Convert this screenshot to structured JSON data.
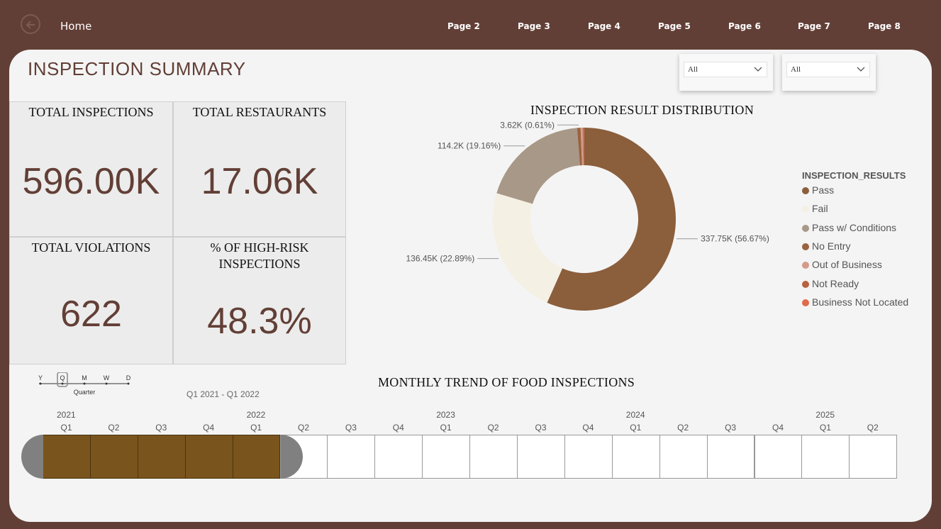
{
  "nav": {
    "home_label": "Home",
    "pages": [
      "Page 2",
      "Page 3",
      "Page 4",
      "Page 5",
      "Page 6",
      "Page 7",
      "Page 8"
    ]
  },
  "header": {
    "title": "INSPECTION SUMMARY"
  },
  "slicers": [
    {
      "value": "All"
    },
    {
      "value": "All"
    }
  ],
  "kpis": {
    "total_inspections": {
      "label": "TOTAL INSPECTIONS",
      "value": "596.00K"
    },
    "total_restaurants": {
      "label": "TOTAL RESTAURANTS",
      "value": "17.06K"
    },
    "total_violations": {
      "label": "TOTAL VIOLATIONS",
      "value": "622"
    },
    "high_risk": {
      "label_line1": "% OF HIGH-RISK",
      "label_line2": "INSPECTIONS",
      "value": "48.3%"
    }
  },
  "chart_data": {
    "type": "pie",
    "title": "INSPECTION RESULT DISTRIBUTION",
    "legend_title": "INSPECTION_RESULTS",
    "legend_position": "right",
    "slices": [
      {
        "name": "Pass",
        "value": 337.75,
        "label": "337.75K (56.67%)",
        "color": "#8b5e3c"
      },
      {
        "name": "Fail",
        "value": 136.45,
        "label": "136.45K (22.89%)",
        "color": "#f5f0e4"
      },
      {
        "name": "Pass w/ Conditions",
        "value": 114.2,
        "label": "114.2K (19.16%)",
        "color": "#a89888"
      },
      {
        "name": "No Entry",
        "value": 3.62,
        "label": "3.62K (0.61%)",
        "color": "#9a6240"
      },
      {
        "name": "Out of Business",
        "value": 2.4,
        "label": "",
        "color": "#d49a8a"
      },
      {
        "name": "Not Ready",
        "value": 1.0,
        "label": "",
        "color": "#b8613f"
      },
      {
        "name": "Business Not Located",
        "value": 0.5,
        "label": "",
        "color": "#e06a4c"
      }
    ]
  },
  "timeline": {
    "title": "MONTHLY TREND OF FOOD INSPECTIONS",
    "granularity": {
      "options": [
        "Y",
        "Q",
        "M",
        "W",
        "D"
      ],
      "selected": "Q",
      "selected_label": "Quarter"
    },
    "range_text": "Q1 2021 - Q1 2022",
    "years": [
      "2021",
      "2022",
      "2023",
      "2024",
      "2025"
    ],
    "quarters": [
      "Q1",
      "Q2",
      "Q3",
      "Q4",
      "Q1",
      "Q2",
      "Q3",
      "Q4",
      "Q1",
      "Q2",
      "Q3",
      "Q4",
      "Q1",
      "Q2",
      "Q3",
      "Q4",
      "Q1",
      "Q2"
    ],
    "selected_count": 5
  },
  "colors": {
    "brand": "#623f36",
    "panel": "#f4f4f4",
    "timeline_selected": "#7a541d"
  }
}
